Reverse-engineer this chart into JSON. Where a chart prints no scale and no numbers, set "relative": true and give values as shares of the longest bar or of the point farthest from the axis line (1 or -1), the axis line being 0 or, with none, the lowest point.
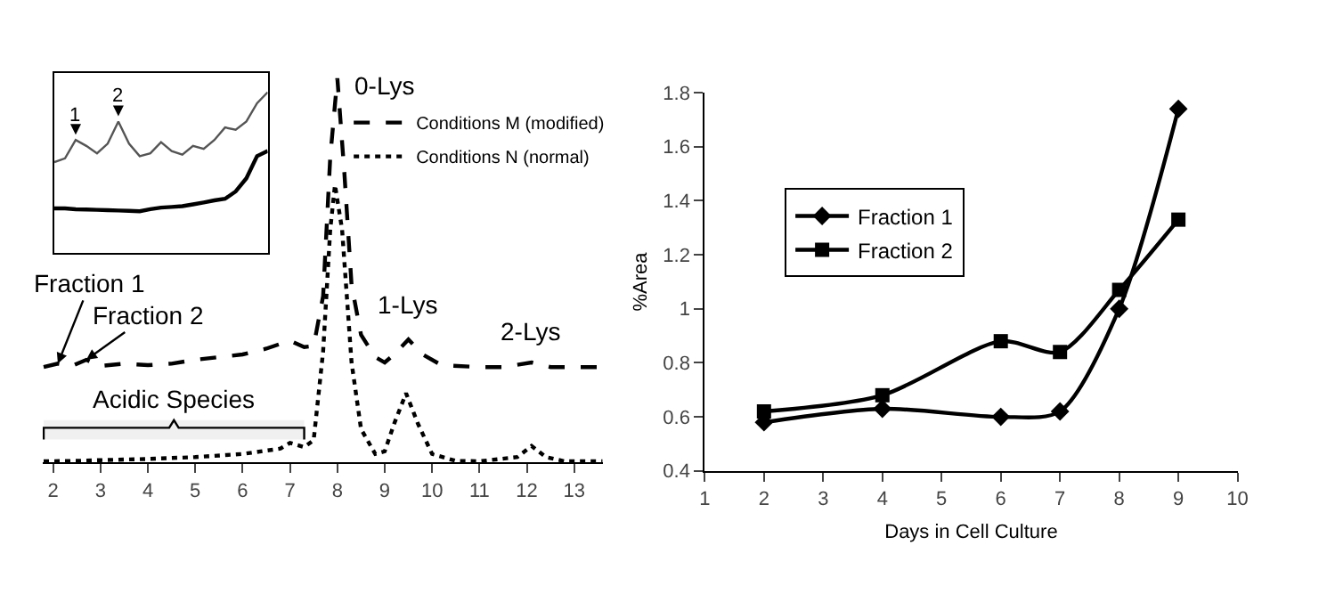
{
  "chart_data": [
    {
      "type": "line",
      "relative": true,
      "xlim": [
        1.78,
        13.6
      ],
      "xticks": [
        2,
        3,
        4,
        5,
        6,
        7,
        8,
        9,
        10,
        11,
        12,
        13
      ],
      "tick_labels": "x",
      "legend": "top right",
      "series": [
        {
          "name": "Conditions M (modified)",
          "color": "#000000",
          "line_style": "dashed",
          "x": [
            1.8,
            2.1,
            2.4,
            2.7,
            3.0,
            3.5,
            4,
            4.5,
            5,
            5.5,
            6,
            6.5,
            7.0,
            7.3,
            7.5,
            7.7,
            7.85,
            8.0,
            8.15,
            8.3,
            8.5,
            8.8,
            9.0,
            9.2,
            9.5,
            9.8,
            10.2,
            11,
            11.5,
            12.1,
            12.5,
            13.6
          ],
          "values": [
            0.248,
            0.257,
            0.251,
            0.267,
            0.251,
            0.257,
            0.253,
            0.257,
            0.267,
            0.274,
            0.281,
            0.296,
            0.317,
            0.3,
            0.303,
            0.433,
            0.794,
            1.0,
            0.75,
            0.462,
            0.332,
            0.274,
            0.26,
            0.281,
            0.32,
            0.281,
            0.253,
            0.248,
            0.248,
            0.26,
            0.248,
            0.248
          ]
        },
        {
          "name": "Conditions N (normal)",
          "color": "#000000",
          "line_style": "dotted",
          "x": [
            1.8,
            2.5,
            3,
            4,
            5,
            6,
            6.8,
            7.0,
            7.3,
            7.5,
            7.7,
            7.85,
            7.95,
            8.1,
            8.3,
            8.5,
            8.8,
            9.0,
            9.2,
            9.45,
            9.7,
            10.0,
            10.5,
            11,
            11.8,
            12.1,
            12.4,
            12.8,
            13.6
          ],
          "values": [
            0.003,
            0.004,
            0.006,
            0.009,
            0.014,
            0.022,
            0.036,
            0.051,
            0.04,
            0.058,
            0.289,
            0.606,
            0.722,
            0.606,
            0.26,
            0.087,
            0.022,
            0.029,
            0.101,
            0.18,
            0.101,
            0.022,
            0.004,
            0.003,
            0.014,
            0.043,
            0.014,
            0.003,
            0.003
          ]
        }
      ],
      "bands": [
        {
          "axis": "x",
          "from": 1.8,
          "to": 7.3,
          "label": "Acidic Species"
        }
      ],
      "annotations": [
        {
          "text": "0-Lys",
          "x": 8.0,
          "y": 1.0
        },
        {
          "text": "1-Lys",
          "x": 9.5,
          "y": 0.32
        },
        {
          "text": "2-Lys",
          "x": 12.1,
          "y": 0.26
        },
        {
          "text": "Fraction 1",
          "x": 2.1,
          "y": 0.257
        },
        {
          "text": "Fraction 2",
          "x": 2.7,
          "y": 0.267
        }
      ]
    },
    {
      "type": "line",
      "relative": true,
      "categories": [
        null,
        null,
        null,
        null,
        null,
        null,
        null,
        null,
        null,
        null,
        null,
        null,
        null,
        null,
        null,
        null,
        null,
        null,
        null,
        null,
        null
      ],
      "series": [
        {
          "color": "#555555",
          "values": [
            0.564,
            0.587,
            0.702,
            0.665,
            0.619,
            0.679,
            0.817,
            0.679,
            0.601,
            0.619,
            0.688,
            0.633,
            0.61,
            0.665,
            0.647,
            0.702,
            0.78,
            0.766,
            0.817,
            0.931,
            1.0
          ]
        },
        {
          "color": "#000000",
          "values": [
            0.275,
            0.275,
            0.27,
            0.268,
            0.266,
            0.264,
            0.262,
            0.26,
            0.257,
            0.27,
            0.28,
            0.284,
            0.289,
            0.3,
            0.312,
            0.325,
            0.335,
            0.381,
            0.463,
            0.601,
            0.633
          ]
        }
      ],
      "annotations": [
        "1",
        "2"
      ]
    },
    {
      "type": "line",
      "xlabel": "Days in Cell Culture",
      "ylabel": "%Area",
      "xlim": [
        1,
        10
      ],
      "xticks": [
        1,
        2,
        3,
        4,
        5,
        6,
        7,
        8,
        9,
        10
      ],
      "ylim": [
        0.4,
        1.8
      ],
      "yticks": [
        0.4,
        0.6,
        0.8,
        1,
        1.2,
        1.4,
        1.6,
        1.8
      ],
      "legend": "top left",
      "x": [
        2,
        4,
        6,
        7,
        8,
        9
      ],
      "series": [
        {
          "name": "Fraction 1",
          "color": "#000000",
          "marker": "diamond",
          "values": [
            0.58,
            0.63,
            0.6,
            0.62,
            1.0,
            1.74
          ]
        },
        {
          "name": "Fraction 2",
          "color": "#000000",
          "marker": "square",
          "values": [
            0.62,
            0.68,
            0.88,
            0.84,
            1.07,
            1.33
          ]
        }
      ]
    }
  ]
}
